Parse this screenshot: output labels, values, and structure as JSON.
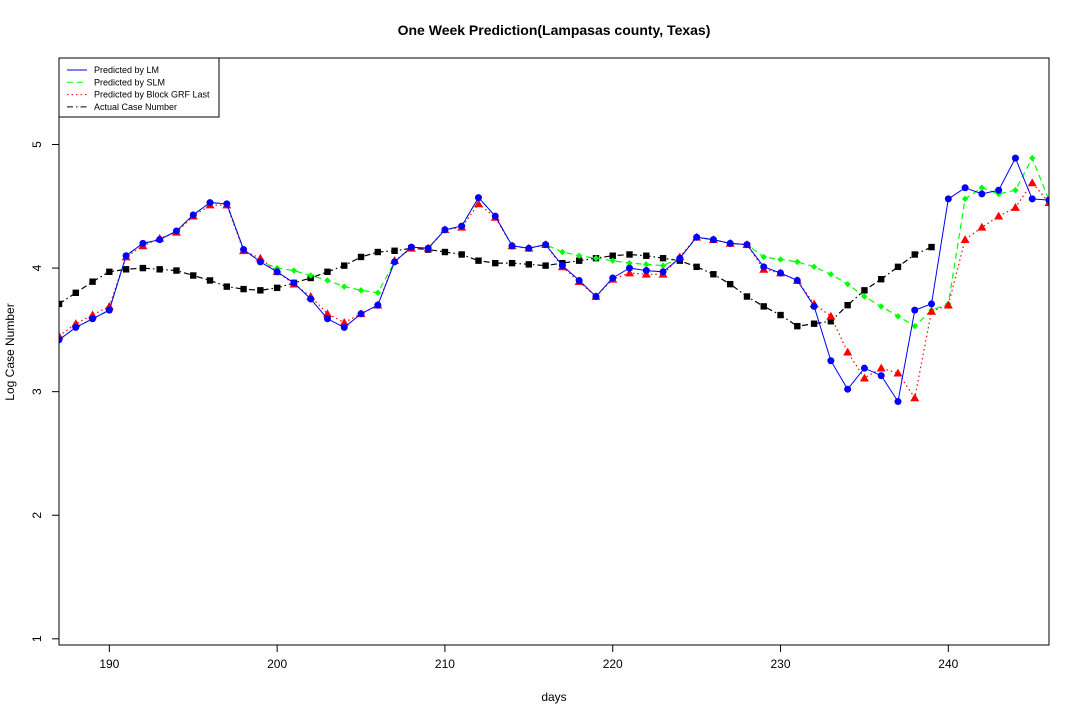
{
  "chart_data": {
    "type": "line",
    "title": "One Week Prediction(Lampasas county, Texas)",
    "xlabel": "days",
    "ylabel": "Log Case Number",
    "xlim": [
      187,
      246
    ],
    "ylim": [
      0.95,
      5.7
    ],
    "xticks": [
      190,
      200,
      210,
      220,
      230,
      240
    ],
    "yticks": [
      1,
      2,
      3,
      4,
      5
    ],
    "grid": false,
    "legend_position": "top-left",
    "x": [
      187,
      188,
      189,
      190,
      191,
      192,
      193,
      194,
      195,
      196,
      197,
      198,
      199,
      200,
      201,
      202,
      203,
      204,
      205,
      206,
      207,
      208,
      209,
      210,
      211,
      212,
      213,
      214,
      215,
      216,
      217,
      218,
      219,
      220,
      221,
      222,
      223,
      224,
      225,
      226,
      227,
      228,
      229,
      230,
      231,
      232,
      233,
      234,
      235,
      236,
      237,
      238,
      239,
      240,
      241,
      242,
      243,
      244,
      245,
      246
    ],
    "series": [
      {
        "name": "Predicted by LM",
        "color": "#0000ff",
        "line_style": "solid",
        "marker": "circle",
        "marker_color": "#0000ff",
        "values": [
          3.42,
          3.52,
          3.59,
          3.66,
          4.1,
          4.2,
          4.23,
          4.3,
          4.43,
          4.53,
          4.52,
          4.15,
          4.05,
          3.97,
          3.88,
          3.75,
          3.59,
          3.52,
          3.63,
          3.7,
          4.05,
          4.17,
          4.16,
          4.31,
          4.34,
          4.57,
          4.42,
          4.18,
          4.16,
          4.19,
          4.02,
          3.9,
          3.77,
          3.92,
          4.0,
          3.98,
          3.97,
          4.08,
          4.25,
          4.23,
          4.2,
          4.19,
          4.01,
          3.96,
          3.9,
          3.69,
          3.25,
          3.02,
          3.19,
          3.13,
          2.92,
          3.66,
          3.71,
          4.56,
          4.65,
          4.6,
          4.63,
          4.89,
          4.56,
          4.55
        ]
      },
      {
        "name": "Predicted by SLM",
        "color": "#00ff00",
        "line_style": "dashed",
        "marker": "diamond",
        "marker_color": "#00ff00",
        "values": [
          3.42,
          3.52,
          3.59,
          3.66,
          4.1,
          4.2,
          4.23,
          4.3,
          4.43,
          4.53,
          4.52,
          4.15,
          4.05,
          4.0,
          3.98,
          3.94,
          3.9,
          3.85,
          3.82,
          3.8,
          4.05,
          4.17,
          4.16,
          4.31,
          4.34,
          4.57,
          4.42,
          4.18,
          4.16,
          4.19,
          4.13,
          4.1,
          4.08,
          4.06,
          4.04,
          4.03,
          4.02,
          4.08,
          4.25,
          4.23,
          4.2,
          4.19,
          4.09,
          4.07,
          4.05,
          4.01,
          3.95,
          3.87,
          3.77,
          3.69,
          3.61,
          3.53,
          3.66,
          3.71,
          4.56,
          4.65,
          4.6,
          4.63,
          4.89,
          4.55
        ]
      },
      {
        "name": "Predicted by Block GRF Last",
        "color": "#ff0000",
        "line_style": "dotted",
        "marker": "triangle",
        "marker_color": "#ff0000",
        "values": [
          3.45,
          3.55,
          3.62,
          3.69,
          4.09,
          4.18,
          4.24,
          4.29,
          4.42,
          4.51,
          4.51,
          4.14,
          4.08,
          3.97,
          3.87,
          3.77,
          3.63,
          3.56,
          3.63,
          3.7,
          4.06,
          4.16,
          4.16,
          4.31,
          4.33,
          4.52,
          4.41,
          4.18,
          4.16,
          4.19,
          4.01,
          3.89,
          3.77,
          3.91,
          3.96,
          3.95,
          3.95,
          4.09,
          4.25,
          4.23,
          4.2,
          4.19,
          3.99,
          3.96,
          3.9,
          3.71,
          3.61,
          3.32,
          3.11,
          3.19,
          3.15,
          2.95,
          3.65,
          3.7,
          4.23,
          4.33,
          4.42,
          4.49,
          4.69,
          4.53
        ]
      },
      {
        "name": "Actual Case Number",
        "color": "#000000",
        "line_style": "dashdot",
        "marker": "square",
        "marker_color": "#000000",
        "values": [
          3.71,
          3.8,
          3.89,
          3.97,
          3.99,
          4.0,
          3.99,
          3.98,
          3.94,
          3.9,
          3.85,
          3.83,
          3.82,
          3.84,
          3.88,
          3.92,
          3.97,
          4.02,
          4.09,
          4.13,
          4.14,
          4.16,
          4.15,
          4.13,
          4.11,
          4.06,
          4.04,
          4.04,
          4.03,
          4.02,
          4.04,
          4.06,
          4.08,
          4.1,
          4.11,
          4.1,
          4.08,
          4.06,
          4.01,
          3.95,
          3.87,
          3.77,
          3.69,
          3.62,
          3.53,
          3.55,
          3.57,
          3.7,
          3.82,
          3.91,
          4.01,
          4.11,
          4.17,
          null,
          null,
          null,
          null,
          null,
          null,
          null
        ]
      }
    ]
  }
}
